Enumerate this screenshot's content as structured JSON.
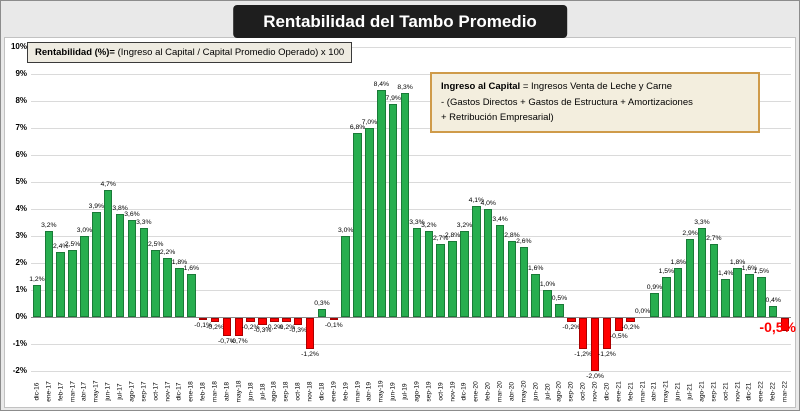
{
  "header": {
    "title": "Rentabilidad del Tambo Promedio"
  },
  "formula_box": {
    "bold": "Rentabilidad (%)=",
    "rest": " (Ingreso al Capital / Capital Promedio Operado) x 100"
  },
  "info_box": {
    "line1_bold": "Ingreso al Capital",
    "line1_rest": " = Ingresos Venta de Leche y Carne",
    "line2": "-  (Gastos Directos + Gastos de Estructura  + Amortizaciones",
    "line3": "+  Retribución Empresarial)"
  },
  "chart_data": {
    "type": "bar",
    "title": "Rentabilidad del Tambo Promedio",
    "xlabel": "",
    "ylabel": "",
    "ylim": [
      -2,
      10
    ],
    "ytick_labels": [
      "10%",
      "9%",
      "8%",
      "7%",
      "6%",
      "5%",
      "4%",
      "3%",
      "2%",
      "1%",
      "0%",
      "-1%",
      "-2%"
    ],
    "grid": true,
    "legend": false,
    "categories": [
      "dic-16",
      "ene-17",
      "feb-17",
      "mar-17",
      "abr-17",
      "may-17",
      "jun-17",
      "jul-17",
      "ago-17",
      "sep-17",
      "oct-17",
      "nov-17",
      "dic-17",
      "ene-18",
      "feb-18",
      "mar-18",
      "abr-18",
      "may-18",
      "jun-18",
      "jul-18",
      "ago-18",
      "sep-18",
      "oct-18",
      "nov-18",
      "dic-18",
      "ene-19",
      "feb-19",
      "mar-19",
      "abr-19",
      "may-19",
      "jun-19",
      "jul-19",
      "ago-19",
      "sep-19",
      "oct-19",
      "nov-19",
      "dic-19",
      "ene-20",
      "feb-20",
      "mar-20",
      "abr-20",
      "may-20",
      "jun-20",
      "jul-20",
      "ago-20",
      "sep-20",
      "oct-20",
      "nov-20",
      "dic-20",
      "ene-21",
      "feb-21",
      "mar-21",
      "abr-21",
      "may-21",
      "jun-21",
      "jul-21",
      "ago-21",
      "sep-21",
      "oct-21",
      "nov-21",
      "dic-21",
      "ene-22",
      "feb-22",
      "mar-22"
    ],
    "values": [
      1.2,
      3.2,
      2.4,
      2.5,
      3.0,
      3.9,
      4.7,
      3.8,
      3.6,
      3.3,
      2.5,
      2.2,
      1.8,
      1.6,
      -0.1,
      -0.2,
      -0.7,
      -0.7,
      -0.2,
      -0.3,
      -0.2,
      -0.2,
      -0.3,
      -1.2,
      0.3,
      -0.1,
      3.0,
      6.8,
      7.0,
      8.4,
      7.9,
      8.3,
      3.3,
      3.2,
      2.7,
      2.8,
      3.2,
      4.1,
      4.0,
      3.4,
      2.8,
      2.6,
      1.6,
      1.0,
      0.5,
      -0.2,
      -1.2,
      -2.0,
      -1.2,
      -0.5,
      -0.2,
      0.0,
      0.9,
      1.5,
      1.8,
      2.9,
      3.3,
      2.7,
      1.4,
      1.8,
      1.6,
      1.5,
      0.4,
      -0.5
    ],
    "colors": {
      "positive": "#27ae4f",
      "positive_border": "#1a7a38",
      "negative": "#ff0000",
      "negative_border": "#a80000",
      "highlight": "#fe0000"
    },
    "last_value_callout": "-0,5%"
  }
}
